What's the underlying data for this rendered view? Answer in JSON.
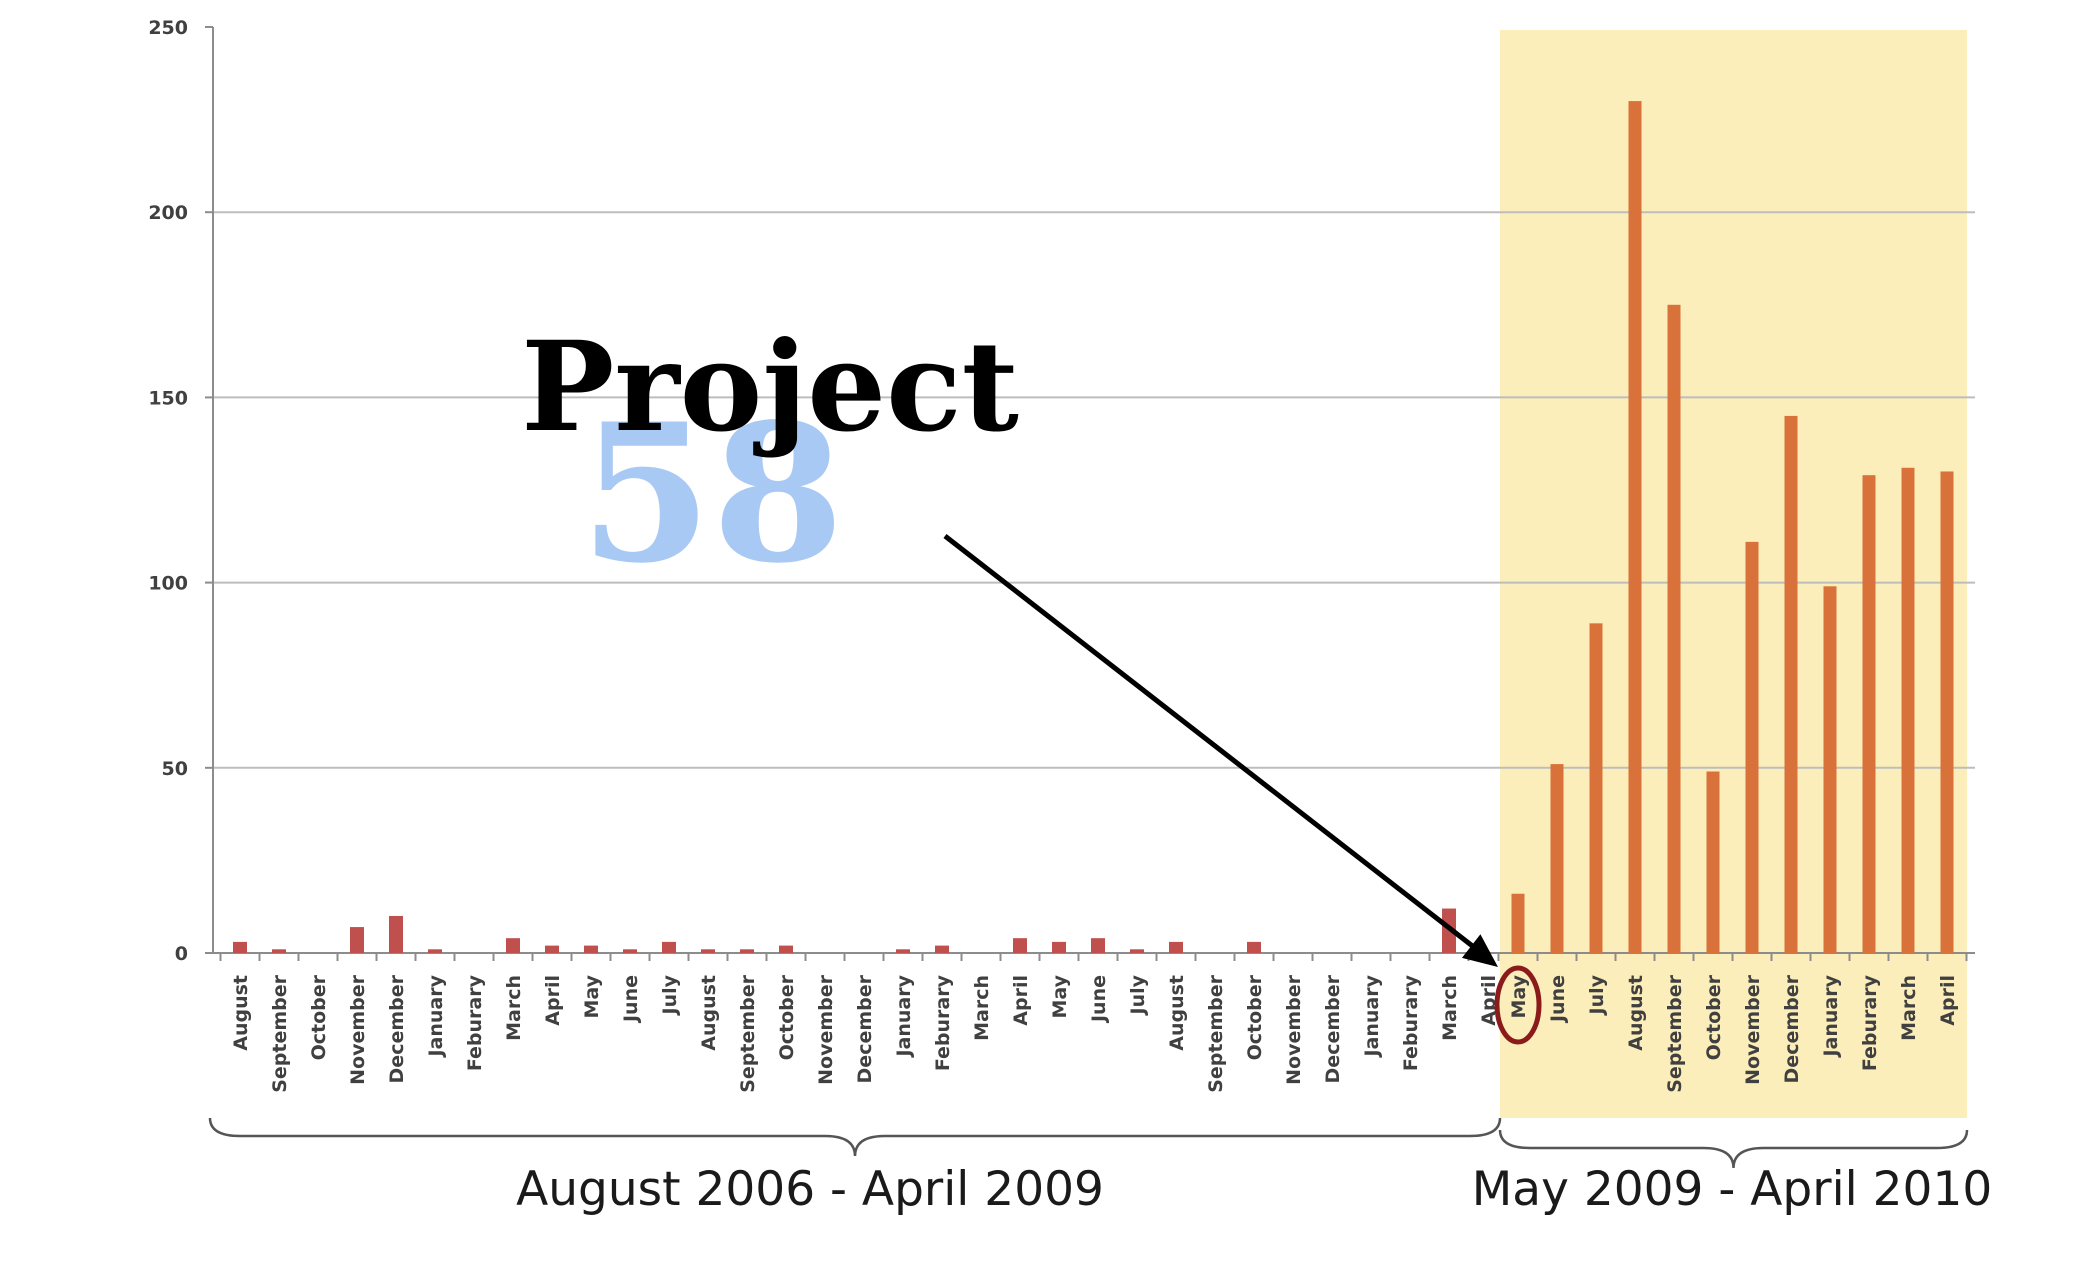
{
  "chart_data": {
    "type": "bar",
    "title": "Project",
    "title_number": "58",
    "ylim": [
      0,
      250
    ],
    "yticks": [
      "0",
      "50",
      "100",
      "150",
      "200",
      "250"
    ],
    "grid": true,
    "before": {
      "label": "August 2006 - April 2009",
      "color": "#c0504d",
      "categories": [
        "August",
        "September",
        "October",
        "November",
        "December",
        "January",
        "Feburary",
        "March",
        "April",
        "May",
        "June",
        "July",
        "August",
        "September",
        "October",
        "November",
        "December",
        "January",
        "Feburary",
        "March",
        "April",
        "May",
        "June",
        "July",
        "August",
        "September",
        "October",
        "November",
        "December",
        "January",
        "Feburary",
        "March",
        "April"
      ],
      "values": [
        3,
        1,
        0,
        7,
        10,
        1,
        0,
        4,
        2,
        2,
        1,
        3,
        1,
        1,
        2,
        0,
        0,
        1,
        2,
        0,
        4,
        3,
        4,
        1,
        3,
        0,
        3,
        0,
        0,
        0,
        0,
        12,
        0
      ]
    },
    "after": {
      "label": "May 2009 - April 2010",
      "color": "#d9713a",
      "highlight_color": "#fbeeba",
      "categories": [
        "May",
        "June",
        "July",
        "August",
        "September",
        "October",
        "November",
        "December",
        "January",
        "Feburary",
        "March",
        "April"
      ],
      "values": [
        16,
        51,
        89,
        230,
        175,
        49,
        111,
        145,
        99,
        129,
        131,
        130
      ]
    },
    "annotation": {
      "arrow_target": "May",
      "circled_category": "May"
    }
  }
}
